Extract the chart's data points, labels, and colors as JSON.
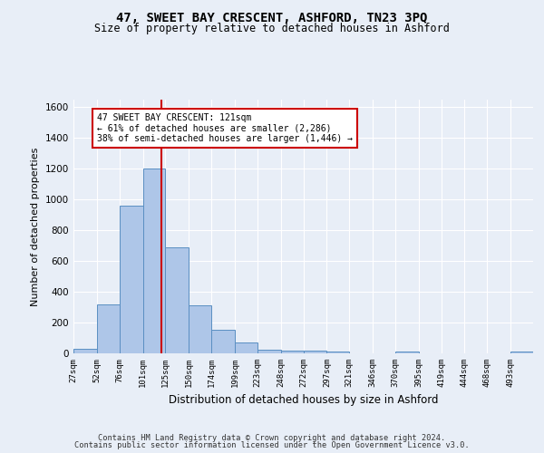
{
  "title": "47, SWEET BAY CRESCENT, ASHFORD, TN23 3PQ",
  "subtitle": "Size of property relative to detached houses in Ashford",
  "xlabel": "Distribution of detached houses by size in Ashford",
  "ylabel": "Number of detached properties",
  "bin_edges": [
    27,
    52,
    76,
    101,
    125,
    150,
    174,
    199,
    223,
    248,
    272,
    297,
    321,
    346,
    370,
    395,
    419,
    444,
    468,
    493,
    517
  ],
  "bar_heights": [
    30,
    320,
    960,
    1200,
    690,
    310,
    155,
    70,
    25,
    20,
    15,
    10,
    0,
    0,
    10,
    0,
    0,
    0,
    0,
    10
  ],
  "bar_color": "#aec6e8",
  "bar_edgecolor": "#5a8fc2",
  "property_size": 121,
  "vline_color": "#cc0000",
  "annotation_line1": "47 SWEET BAY CRESCENT: 121sqm",
  "annotation_line2": "← 61% of detached houses are smaller (2,286)",
  "annotation_line3": "38% of semi-detached houses are larger (1,446) →",
  "annotation_box_color": "#ffffff",
  "annotation_box_edgecolor": "#cc0000",
  "ylim": [
    0,
    1650
  ],
  "yticks": [
    0,
    200,
    400,
    600,
    800,
    1000,
    1200,
    1400,
    1600
  ],
  "footer_line1": "Contains HM Land Registry data © Crown copyright and database right 2024.",
  "footer_line2": "Contains public sector information licensed under the Open Government Licence v3.0.",
  "background_color": "#e8eef7",
  "plot_bg_color": "#e8eef7",
  "grid_color": "#ffffff",
  "title_fontsize": 10,
  "subtitle_fontsize": 8.5
}
